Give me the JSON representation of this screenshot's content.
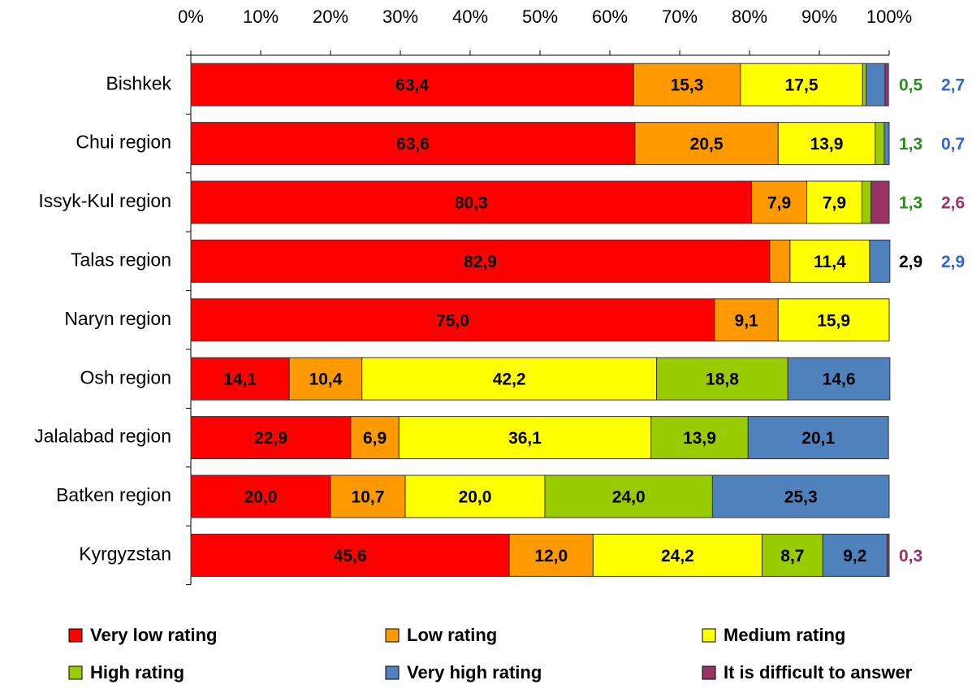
{
  "chart_data": {
    "type": "stacked_barh",
    "categories": [
      "Bishkek",
      "Chui region",
      "Issyk-Kul region",
      "Talas region",
      "Naryn region",
      "Osh region",
      "Jalalabad region",
      "Batken region",
      "Kyrgyzstan"
    ],
    "series": [
      {
        "name": "Very low rating",
        "color": "#ff0000",
        "label_color": "#000000",
        "values": [
          63.4,
          63.6,
          80.3,
          82.9,
          75.0,
          14.1,
          22.9,
          20.0,
          45.6
        ],
        "value_labels": [
          "63,4",
          "63,6",
          "80,3",
          "82,9",
          "75,0",
          "14,1",
          "22,9",
          "20,0",
          "45,6"
        ]
      },
      {
        "name": "Low rating",
        "color": "#ff9900",
        "label_color": "#000000",
        "values": [
          15.3,
          20.5,
          7.9,
          2.9,
          9.1,
          10.4,
          6.9,
          10.7,
          12.0
        ],
        "value_labels": [
          "15,3",
          "20,5",
          "7,9",
          "2,9",
          "9,1",
          "10,4",
          "6,9",
          "10,7",
          "12,0"
        ]
      },
      {
        "name": "Medium rating",
        "color": "#ffff00",
        "label_color": "#000000",
        "values": [
          17.5,
          13.9,
          7.9,
          11.4,
          15.9,
          42.2,
          36.1,
          20.0,
          24.2
        ],
        "value_labels": [
          "17,5",
          "13,9",
          "7,9",
          "11,4",
          "15,9",
          "42,2",
          "36,1",
          "20,0",
          "24,2"
        ]
      },
      {
        "name": "High rating",
        "color": "#99cc00",
        "label_color": "#2e8b1e",
        "values": [
          0.5,
          1.3,
          1.3,
          null,
          null,
          18.8,
          13.9,
          24.0,
          8.7
        ],
        "value_labels": [
          "0,5",
          "1,3",
          "1,3",
          null,
          null,
          "18,8",
          "13,9",
          "24,0",
          "8,7"
        ]
      },
      {
        "name": "Very high rating",
        "color": "#4f81bd",
        "label_color": "#3366cc",
        "values": [
          2.7,
          0.7,
          null,
          2.9,
          null,
          14.6,
          20.1,
          25.3,
          9.2
        ],
        "value_labels": [
          "2,7",
          "0,7",
          null,
          "2,9",
          null,
          "14,6",
          "20,1",
          "25,3",
          "9,2"
        ]
      },
      {
        "name": "It is difficult to answer",
        "color": "#993366",
        "label_color": "#993366",
        "values": [
          0.5,
          null,
          2.6,
          null,
          null,
          null,
          null,
          null,
          0.3
        ],
        "value_labels": [
          "0,5",
          null,
          "2,6",
          null,
          null,
          null,
          null,
          null,
          "0,3"
        ]
      }
    ],
    "xlim": [
      0,
      100
    ],
    "xticks": [
      {
        "value": 0,
        "label": "0%"
      },
      {
        "value": 10,
        "label": "10%"
      },
      {
        "value": 20,
        "label": "20%"
      },
      {
        "value": 30,
        "label": "30%"
      },
      {
        "value": 40,
        "label": "40%"
      },
      {
        "value": 50,
        "label": "50%"
      },
      {
        "value": 60,
        "label": "60%"
      },
      {
        "value": 70,
        "label": "70%"
      },
      {
        "value": 80,
        "label": "80%"
      },
      {
        "value": 90,
        "label": "90%"
      },
      {
        "value": 100,
        "label": "100%"
      }
    ],
    "legend": "bottom"
  }
}
